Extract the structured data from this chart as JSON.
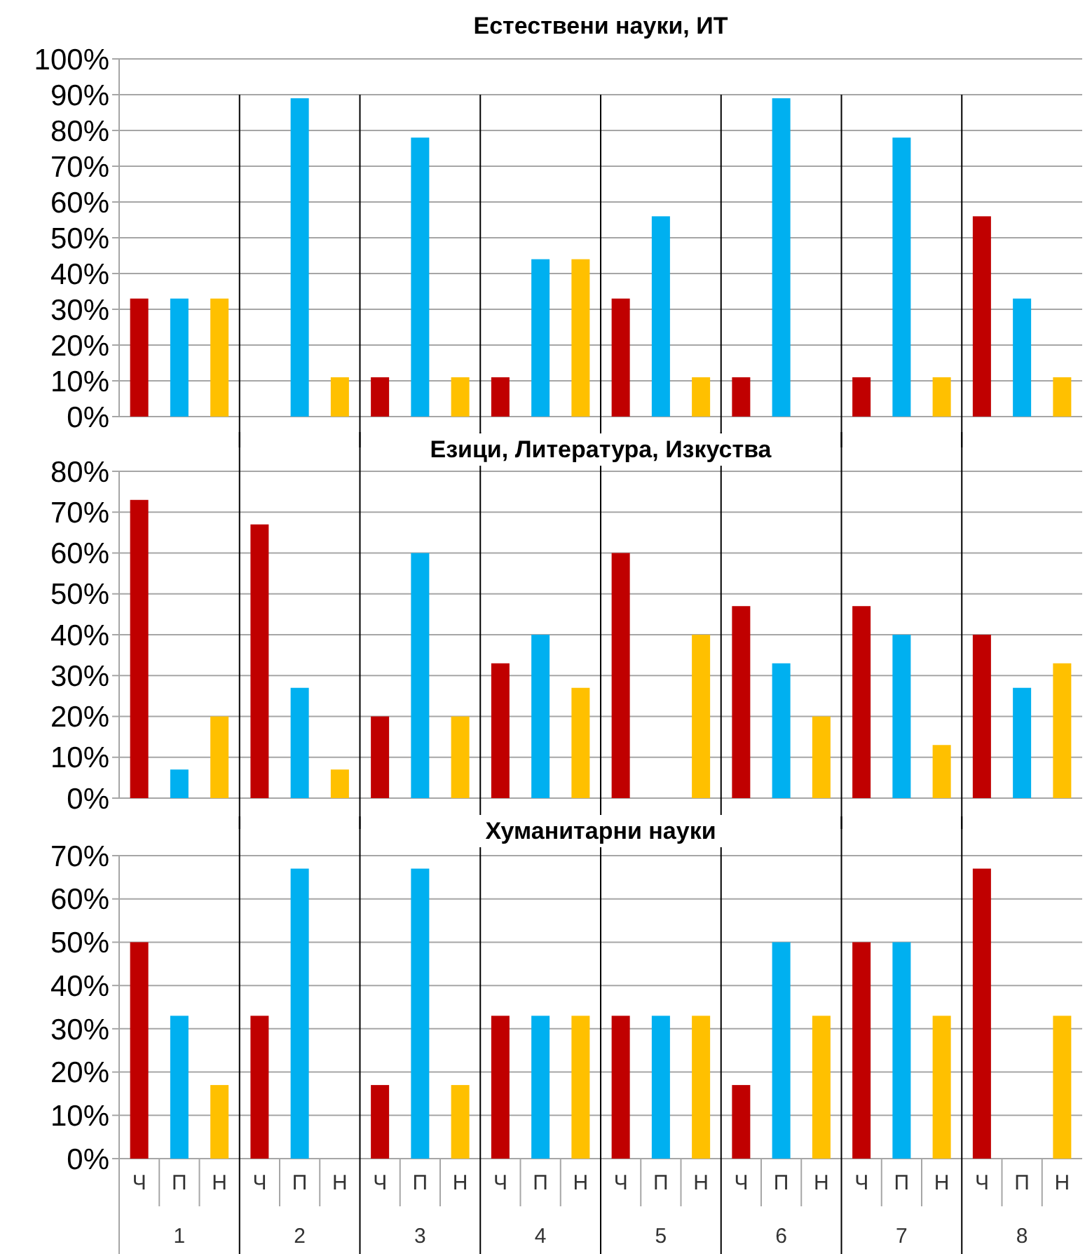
{
  "chart_data": [
    {
      "type": "bar",
      "title": "Естествени науки, ИТ",
      "categories": [
        null,
        null,
        null,
        null,
        null,
        null,
        null,
        null
      ],
      "series": [
        {
          "color": "#c00000",
          "values": [
            33,
            0,
            11,
            11,
            33,
            11,
            11,
            56
          ]
        },
        {
          "color": "#00b0f0",
          "values": [
            33,
            89,
            78,
            44,
            56,
            89,
            78,
            33
          ]
        },
        {
          "color": "#ffc000",
          "values": [
            33,
            11,
            11,
            44,
            11,
            0,
            11,
            11
          ]
        }
      ],
      "ylim": [
        0,
        100
      ],
      "yticks": [
        {
          "value": 0,
          "label": "0%"
        },
        {
          "value": 10,
          "label": "10%"
        },
        {
          "value": 20,
          "label": "20%"
        },
        {
          "value": 30,
          "label": "30%"
        },
        {
          "value": 40,
          "label": "40%"
        },
        {
          "value": 50,
          "label": "50%"
        },
        {
          "value": 60,
          "label": "60%"
        },
        {
          "value": 70,
          "label": "70%"
        },
        {
          "value": 80,
          "label": "80%"
        },
        {
          "value": 90,
          "label": "90%"
        },
        {
          "value": 100,
          "label": "100%"
        }
      ],
      "grid": "y",
      "tick_labels": "y"
    },
    {
      "type": "bar",
      "title": "Езици, Литература, Изкуства",
      "categories": [
        null,
        null,
        null,
        null,
        null,
        null,
        null,
        null
      ],
      "series": [
        {
          "color": "#c00000",
          "values": [
            73,
            67,
            20,
            33,
            60,
            47,
            47,
            40
          ]
        },
        {
          "color": "#00b0f0",
          "values": [
            7,
            27,
            60,
            40,
            0,
            33,
            40,
            27
          ]
        },
        {
          "color": "#ffc000",
          "values": [
            20,
            7,
            20,
            27,
            40,
            20,
            13,
            33
          ]
        }
      ],
      "ylim": [
        0,
        80
      ],
      "yticks": [
        {
          "value": 0,
          "label": "0%"
        },
        {
          "value": 10,
          "label": "10%"
        },
        {
          "value": 20,
          "label": "20%"
        },
        {
          "value": 30,
          "label": "30%"
        },
        {
          "value": 40,
          "label": "40%"
        },
        {
          "value": 50,
          "label": "50%"
        },
        {
          "value": 60,
          "label": "60%"
        },
        {
          "value": 70,
          "label": "70%"
        },
        {
          "value": 80,
          "label": "80%"
        }
      ],
      "grid": "y",
      "tick_labels": "y"
    },
    {
      "type": "bar",
      "title": "Хуманитарни науки",
      "categories": [
        "1",
        "2",
        "3",
        "4",
        "5",
        "6",
        "7",
        "8"
      ],
      "series": [
        {
          "name": "Ч",
          "color": "#c00000",
          "values": [
            50,
            33,
            17,
            33,
            33,
            17,
            50,
            67
          ]
        },
        {
          "name": "П",
          "color": "#00b0f0",
          "values": [
            33,
            67,
            67,
            33,
            33,
            50,
            50,
            0
          ]
        },
        {
          "name": "Н",
          "color": "#ffc000",
          "values": [
            17,
            0,
            17,
            33,
            33,
            33,
            33,
            33
          ]
        }
      ],
      "ylim": [
        0,
        70
      ],
      "yticks": [
        {
          "value": 0,
          "label": "0%"
        },
        {
          "value": 10,
          "label": "10%"
        },
        {
          "value": 20,
          "label": "20%"
        },
        {
          "value": 30,
          "label": "30%"
        },
        {
          "value": 40,
          "label": "40%"
        },
        {
          "value": 50,
          "label": "50%"
        },
        {
          "value": 60,
          "label": "60%"
        },
        {
          "value": 70,
          "label": "70%"
        }
      ],
      "grid": "y"
    }
  ]
}
